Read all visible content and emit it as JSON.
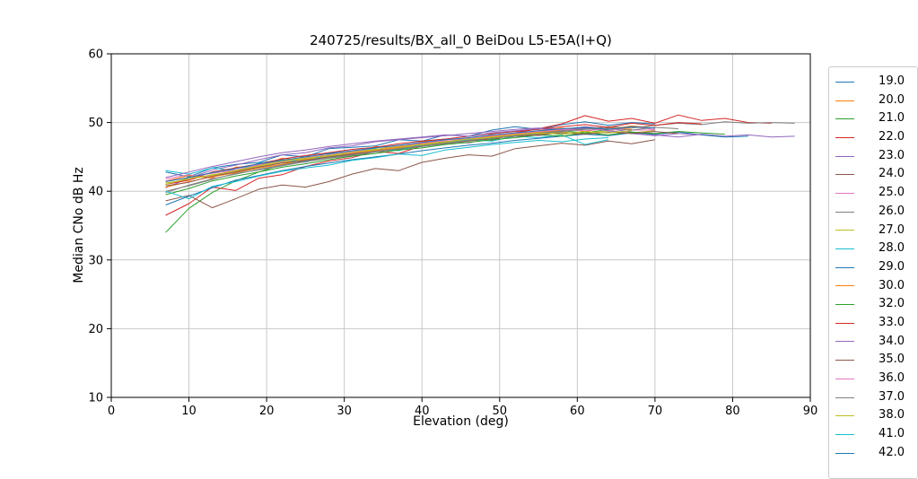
{
  "figure": {
    "title": "240725/results/BX_all_0 BeiDou L5-E5A(I+Q)",
    "xlabel": "Elevation (deg)",
    "ylabel": "Median CNo dB Hz"
  },
  "chart_data": {
    "type": "line",
    "title": "240725/results/BX_all_0 BeiDou L5-E5A(I+Q)",
    "xlabel": "Elevation (deg)",
    "ylabel": "Median CNo dB Hz",
    "xlim": [
      0,
      90
    ],
    "ylim": [
      10,
      60
    ],
    "xticks": [
      0,
      10,
      20,
      30,
      40,
      50,
      60,
      70,
      80,
      90
    ],
    "yticks": [
      10,
      20,
      30,
      40,
      50,
      60
    ],
    "grid": true,
    "grid_color": "#c8c8c8",
    "legend_position": "outside-right, clipped by figure edge",
    "palette_tab10": [
      "#1f77b4",
      "#ff7f0e",
      "#2ca02c",
      "#d62728",
      "#9467bd",
      "#8c564b",
      "#e377c2",
      "#7f7f7f",
      "#bcbd22",
      "#17becf"
    ],
    "series": [
      {
        "name": "19.0",
        "color": "#1f77b4",
        "x0": 7,
        "dx": 3,
        "values": [
          42.8,
          42.1,
          43.4,
          43.9,
          44.2,
          45.3,
          45.0,
          46.2,
          46.4,
          46.6,
          47.5,
          47.3,
          48.2,
          48.0,
          48.9,
          49.4,
          49.0,
          49.7,
          50.1,
          49.6,
          50.0,
          49.8
        ]
      },
      {
        "name": "20.0",
        "color": "#ff7f0e",
        "x0": 7,
        "dx": 3,
        "values": [
          41.5,
          42.3,
          41.9,
          43.5,
          43.6,
          44.8,
          44.5,
          45.6,
          45.3,
          46.5,
          46.3,
          47.2,
          47.6,
          47.4,
          48.3,
          48.1,
          48.8,
          49.2,
          48.7,
          49.3,
          49.0
        ]
      },
      {
        "name": "21.0",
        "color": "#2ca02c",
        "x0": 7,
        "dx": 3,
        "values": [
          34.0,
          37.5,
          39.8,
          41.5,
          42.8,
          43.9,
          44.6,
          44.9,
          45.7,
          45.9,
          46.4,
          46.9,
          47.1,
          47.8,
          47.6,
          48.4,
          48.1,
          48.8,
          48.5,
          49.0
        ]
      },
      {
        "name": "22.0",
        "color": "#d62728",
        "x0": 7,
        "dx": 3,
        "values": [
          36.5,
          38.2,
          40.6,
          40.1,
          41.9,
          42.4,
          43.6,
          44.4,
          44.9,
          45.8,
          45.5,
          46.6,
          46.9,
          47.7,
          47.4,
          48.5,
          49.1,
          49.8,
          51.0,
          50.2,
          50.6,
          49.9,
          51.1,
          50.3,
          50.6,
          50.0,
          49.9
        ]
      },
      {
        "name": "23.0",
        "color": "#9467bd",
        "x0": 7,
        "dx": 3,
        "values": [
          40.5,
          41.9,
          43.1,
          43.8,
          44.6,
          45.3,
          45.6,
          46.3,
          46.6,
          47.2,
          47.5,
          47.8,
          48.1,
          48.4,
          48.7,
          49.0,
          49.2,
          49.0,
          49.4,
          49.1,
          48.6,
          48.2,
          47.9,
          48.3,
          48.0,
          48.2,
          47.9,
          48.0
        ]
      },
      {
        "name": "24.0",
        "color": "#8c564b",
        "x0": 7,
        "dx": 3,
        "values": [
          38.6,
          39.4,
          37.6,
          38.9,
          40.3,
          40.9,
          40.6,
          41.4,
          42.5,
          43.3,
          43.0,
          44.2,
          44.8,
          45.3,
          45.1,
          46.2,
          46.6,
          47.0,
          46.7,
          47.3,
          46.9,
          47.5
        ]
      },
      {
        "name": "25.0",
        "color": "#e377c2",
        "x0": 7,
        "dx": 3,
        "values": [
          41.8,
          42.4,
          42.0,
          43.3,
          43.9,
          44.5,
          44.2,
          45.3,
          45.6,
          46.0,
          46.4,
          46.8,
          47.3,
          47.0,
          47.9,
          48.4,
          48.1,
          48.7,
          49.2,
          48.8,
          49.4,
          49.0
        ]
      },
      {
        "name": "26.0",
        "color": "#7f7f7f",
        "x0": 7,
        "dx": 3,
        "values": [
          40.0,
          40.8,
          41.7,
          42.6,
          43.1,
          43.7,
          44.3,
          44.8,
          45.2,
          45.7,
          46.1,
          46.5,
          46.9,
          47.3,
          47.8,
          48.1,
          48.5,
          48.8,
          49.1,
          49.4,
          49.2,
          49.6,
          49.9,
          49.7,
          50.1,
          49.9,
          50.0,
          49.9
        ]
      },
      {
        "name": "27.0",
        "color": "#bcbd22",
        "x0": 7,
        "dx": 3,
        "values": [
          41.2,
          41.7,
          42.4,
          42.9,
          43.6,
          44.2,
          44.7,
          45.1,
          45.5,
          46.0,
          46.3,
          46.7,
          47.1,
          47.5,
          47.8,
          48.0,
          48.3,
          48.6,
          48.4,
          48.8,
          48.5,
          48.8
        ]
      },
      {
        "name": "28.0",
        "color": "#17becf",
        "x0": 7,
        "dx": 3,
        "values": [
          43.0,
          42.5,
          43.4,
          43.0,
          44.1,
          44.6,
          44.3,
          45.4,
          45.8,
          46.2,
          45.9,
          46.8,
          47.2,
          47.5,
          47.3,
          48.0,
          47.8,
          48.2,
          46.8,
          47.5
        ]
      },
      {
        "name": "29.0",
        "color": "#1f77b4",
        "x0": 7,
        "dx": 3,
        "values": [
          38.0,
          39.3,
          40.5,
          41.6,
          42.3,
          43.0,
          43.6,
          44.1,
          44.6,
          45.0,
          45.4,
          45.9,
          46.3,
          46.7,
          47.0,
          47.4,
          47.7,
          48.0,
          48.3,
          48.1,
          48.5,
          48.3,
          48.6,
          48.2,
          47.9,
          48.0
        ]
      },
      {
        "name": "30.0",
        "color": "#ff7f0e",
        "x0": 7,
        "dx": 3,
        "values": [
          40.6,
          41.4,
          42.1,
          42.7,
          43.4,
          43.9,
          44.6,
          44.9,
          45.5,
          45.9,
          46.4,
          46.9,
          47.2,
          47.6,
          48.0,
          48.3,
          48.6,
          48.9,
          49.3,
          49.0,
          49.5,
          49.2
        ]
      },
      {
        "name": "32.0",
        "color": "#2ca02c",
        "x0": 7,
        "dx": 3,
        "values": [
          39.5,
          40.4,
          41.5,
          42.2,
          42.8,
          43.5,
          44.0,
          44.6,
          45.1,
          45.5,
          46.0,
          46.3,
          46.8,
          47.1,
          47.5,
          47.8,
          48.2,
          48.0,
          48.5,
          48.2,
          48.6,
          48.4,
          48.7,
          48.5,
          48.3
        ]
      },
      {
        "name": "33.0",
        "color": "#d62728",
        "x0": 7,
        "dx": 3,
        "values": [
          41.0,
          41.6,
          42.8,
          43.4,
          44.0,
          44.7,
          45.2,
          45.6,
          46.1,
          46.4,
          46.9,
          47.3,
          47.6,
          48.0,
          48.4,
          48.7,
          49.0,
          49.4,
          49.7,
          49.3,
          49.9,
          49.6,
          50.0,
          49.8
        ]
      },
      {
        "name": "34.0",
        "color": "#9467bd",
        "x0": 7,
        "dx": 3,
        "values": [
          42.0,
          42.8,
          43.6,
          44.3,
          45.0,
          45.6,
          46.0,
          46.5,
          46.9,
          47.3,
          47.6,
          47.9,
          48.2,
          48.0,
          48.5,
          48.8,
          49.1,
          48.9,
          49.2,
          48.8,
          48.4,
          48.1,
          48.4,
          48.2
        ]
      },
      {
        "name": "35.0",
        "color": "#8c564b",
        "x0": 7,
        "dx": 3,
        "values": [
          40.8,
          41.3,
          42.2,
          42.8,
          43.5,
          44.1,
          44.5,
          45.0,
          45.4,
          45.8,
          46.2,
          46.6,
          47.0,
          47.3,
          47.7,
          48.0,
          48.2,
          48.5,
          48.3,
          48.6,
          48.4,
          48.7,
          48.4
        ]
      },
      {
        "name": "36.0",
        "color": "#e377c2",
        "x0": 7,
        "dx": 3,
        "values": [
          41.5,
          42.0,
          42.6,
          43.1,
          43.8,
          44.3,
          44.9,
          45.3,
          45.8,
          46.1,
          46.6,
          47.0,
          47.4,
          47.7,
          48.1,
          48.4,
          48.7,
          49.0,
          48.8,
          49.1,
          48.9,
          48.9
        ]
      },
      {
        "name": "37.0",
        "color": "#7f7f7f",
        "x0": 7,
        "dx": 3,
        "values": [
          39.8,
          40.9,
          41.8,
          42.5,
          43.2,
          43.8,
          44.4,
          44.9,
          45.3,
          45.8,
          46.2,
          46.6,
          47.0,
          47.4,
          47.7,
          48.1,
          48.4,
          48.7,
          49.0,
          49.2,
          48.9,
          49.3,
          49.1
        ]
      },
      {
        "name": "38.0",
        "color": "#bcbd22",
        "x0": 7,
        "dx": 3,
        "values": [
          41.0,
          41.9,
          42.3,
          43.0,
          43.7,
          44.4,
          44.8,
          45.2,
          45.7,
          46.1,
          46.5,
          46.8,
          47.2,
          47.6,
          47.9,
          48.2,
          48.5,
          48.3,
          48.7,
          48.5,
          48.8
        ]
      },
      {
        "name": "41.0",
        "color": "#17becf",
        "x0": 7,
        "dx": 3,
        "values": [
          40.0,
          38.9,
          40.7,
          41.4,
          42.2,
          42.9,
          43.4,
          43.8,
          44.5,
          44.9,
          45.4,
          45.2,
          46.0,
          46.4,
          46.8,
          47.1,
          47.4,
          47.2,
          47.6,
          47.8
        ]
      },
      {
        "name": "42.0",
        "color": "#1f77b4",
        "x0": 7,
        "dx": 3,
        "values": [
          41.4,
          42.0,
          42.7,
          43.3,
          44.0,
          44.5,
          45.0,
          45.5,
          45.9,
          46.3,
          46.7,
          47.1,
          47.5,
          47.8,
          48.2,
          48.5,
          48.8,
          49.1,
          49.3,
          49.0,
          49.4,
          49.2
        ]
      }
    ],
    "legend_entries": [
      "19.0",
      "20.0",
      "21.0",
      "22.0",
      "23.0",
      "24.0",
      "25.0",
      "26.0",
      "27.0",
      "28.0",
      "29.0",
      "30.0",
      "32.0",
      "33.0",
      "34.0",
      "35.0",
      "36.0",
      "37.0",
      "38.0",
      "41.0",
      "42.0"
    ]
  }
}
